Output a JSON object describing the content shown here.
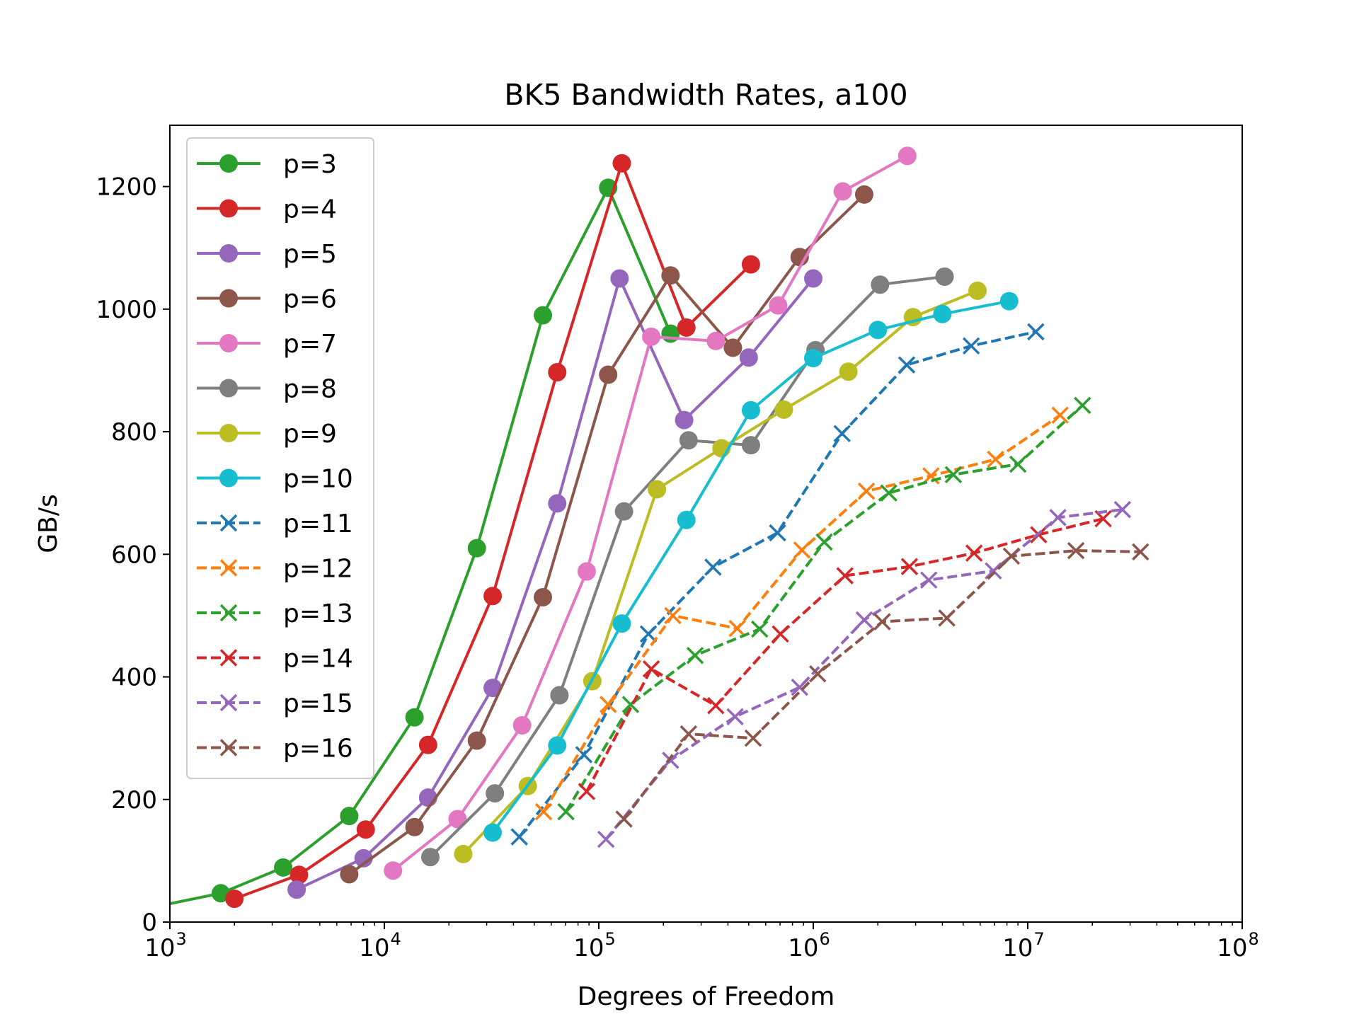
{
  "chart_data": {
    "type": "line",
    "title": "BK5 Bandwidth Rates, a100",
    "xlabel": "Degrees of Freedom",
    "ylabel": "GB/s",
    "xscale": "log",
    "xlim": [
      1000,
      100000000
    ],
    "ylim": [
      0,
      1300
    ],
    "x_ticks": [
      {
        "value": 1000,
        "base": "10",
        "exp": "3"
      },
      {
        "value": 10000,
        "base": "10",
        "exp": "4"
      },
      {
        "value": 100000,
        "base": "10",
        "exp": "5"
      },
      {
        "value": 1000000,
        "base": "10",
        "exp": "6"
      },
      {
        "value": 10000000,
        "base": "10",
        "exp": "7"
      },
      {
        "value": 100000000,
        "base": "10",
        "exp": "8"
      }
    ],
    "y_ticks": [
      0,
      200,
      400,
      600,
      800,
      1000,
      1200
    ],
    "grid": false,
    "legend_position": "top-left",
    "series": [
      {
        "name": "p=3",
        "color": "#2ca02c",
        "marker": "circle",
        "linestyle": "solid",
        "x": [
          800,
          1728,
          3375,
          6859,
          13824,
          27000,
          54872,
          110592,
          216000
        ],
        "y": [
          23,
          47,
          89,
          173,
          334,
          610,
          990,
          1198,
          960
        ]
      },
      {
        "name": "p=4",
        "color": "#d62728",
        "marker": "circle",
        "linestyle": "solid",
        "x": [
          2000,
          4000,
          8192,
          16000,
          32000,
          64000,
          128000,
          256000,
          512000
        ],
        "y": [
          38,
          77,
          151,
          289,
          532,
          897,
          1238,
          970,
          1073
        ]
      },
      {
        "name": "p=5",
        "color": "#9467bd",
        "marker": "circle",
        "linestyle": "solid",
        "x": [
          3900,
          8000,
          16000,
          32000,
          64000,
          125000,
          250000,
          500000,
          1000000
        ],
        "y": [
          53,
          104,
          203,
          382,
          683,
          1050,
          819,
          921,
          1050
        ]
      },
      {
        "name": "p=6",
        "color": "#8c564b",
        "marker": "circle",
        "linestyle": "solid",
        "x": [
          6859,
          13824,
          27000,
          54872,
          110592,
          216000,
          421875,
          864000,
          1728000
        ],
        "y": [
          78,
          155,
          296,
          530,
          893,
          1055,
          937,
          1085,
          1187
        ]
      },
      {
        "name": "p=7",
        "color": "#e377c2",
        "marker": "circle",
        "linestyle": "solid",
        "x": [
          10976,
          21952,
          43904,
          87808,
          175616,
          351232,
          686000,
          1372000,
          2744000
        ],
        "y": [
          84,
          168,
          321,
          572,
          955,
          948,
          1006,
          1192,
          1250
        ]
      },
      {
        "name": "p=8",
        "color": "#7f7f7f",
        "marker": "circle",
        "linestyle": "solid",
        "x": [
          16384,
          32768,
          65536,
          131072,
          262144,
          512000,
          1024000,
          2048000,
          4096000
        ],
        "y": [
          106,
          210,
          370,
          670,
          786,
          778,
          933,
          1040,
          1053
        ]
      },
      {
        "name": "p=9",
        "color": "#bcbd22",
        "marker": "circle",
        "linestyle": "solid",
        "x": [
          23328,
          46656,
          93312,
          186624,
          373248,
          729000,
          1458000,
          2916000,
          5832000
        ],
        "y": [
          111,
          222,
          393,
          706,
          773,
          836,
          898,
          987,
          1030
        ]
      },
      {
        "name": "p=10",
        "color": "#17becf",
        "marker": "circle",
        "linestyle": "solid",
        "x": [
          32000,
          64000,
          128000,
          256000,
          512000,
          1000000,
          2000000,
          4000000,
          8192000
        ],
        "y": [
          146,
          288,
          487,
          656,
          835,
          920,
          966,
          992,
          1013
        ]
      },
      {
        "name": "p=11",
        "color": "#1f77b4",
        "marker": "x",
        "linestyle": "dashed",
        "x": [
          42592,
          85184,
          170368,
          340736,
          681472,
          1362944,
          2725888,
          5451776,
          10903552
        ],
        "y": [
          139,
          273,
          470,
          579,
          635,
          797,
          909,
          940,
          963
        ]
      },
      {
        "name": "p=12",
        "color": "#ff7f0e",
        "marker": "x",
        "linestyle": "dashed",
        "x": [
          55296,
          110592,
          221184,
          442368,
          884736,
          1769472,
          3538944,
          7077888,
          14155776
        ],
        "y": [
          180,
          355,
          500,
          479,
          607,
          703,
          728,
          755,
          827
        ]
      },
      {
        "name": "p=13",
        "color": "#2ca02c",
        "marker": "x",
        "linestyle": "dashed",
        "x": [
          70304,
          140608,
          281216,
          562432,
          1124864,
          2249728,
          4499456,
          8998912,
          17997824
        ],
        "y": [
          180,
          355,
          435,
          478,
          620,
          700,
          730,
          747,
          843
        ]
      },
      {
        "name": "p=14",
        "color": "#d62728",
        "marker": "x",
        "linestyle": "dashed",
        "x": [
          87808,
          175616,
          351232,
          702464,
          1404928,
          2809856,
          5619712,
          11239424,
          22478848
        ],
        "y": [
          213,
          413,
          353,
          470,
          565,
          580,
          602,
          632,
          658
        ]
      },
      {
        "name": "p=15",
        "color": "#9467bd",
        "marker": "x",
        "linestyle": "dashed",
        "x": [
          108000,
          216000,
          432000,
          864000,
          1728000,
          3456000,
          6912000,
          13824000,
          27648000
        ],
        "y": [
          135,
          264,
          335,
          383,
          493,
          558,
          573,
          660,
          673
        ]
      },
      {
        "name": "p=16",
        "color": "#8c564b",
        "marker": "x",
        "linestyle": "dashed",
        "x": [
          131072,
          262144,
          524288,
          1048576,
          2097152,
          4194304,
          8388608,
          16777216,
          33554432
        ],
        "y": [
          168,
          307,
          300,
          405,
          490,
          496,
          597,
          606,
          604
        ]
      }
    ]
  }
}
